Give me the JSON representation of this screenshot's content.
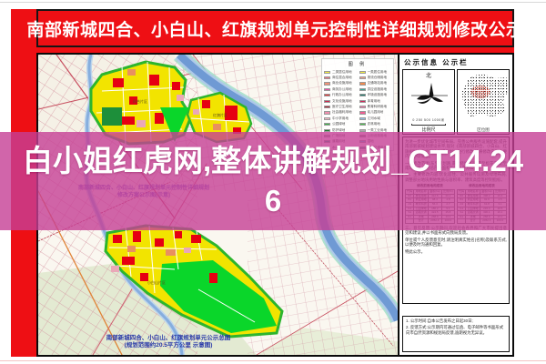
{
  "banner": {
    "title": "南部新城四合、小白山、红旗规划单元控制性详细规划修改公示"
  },
  "overlay": {
    "line1": "白小姐红虎网,整体讲解规划_CT14.24",
    "line2": "6",
    "bg_color": "#c63e95"
  },
  "map": {
    "caption_mid_line1": "南部新城四合、小白山、红旗规划单元控制性详细规划",
    "caption_mid_line2": "修改方案公示图(示意)",
    "caption_bottom_line1": "南部新城四合、小白山、红旗规划单元公示总图",
    "caption_bottom_line2": "(规划范围约20.5平方公里 示意图)",
    "area_label_upper": "四合片区",
    "area_label_right": "红旗片区",
    "area_label_lower": "小白山片区",
    "legend": {
      "title": "图 例",
      "left": [
        {
          "c": "#f5ef3d",
          "t": "二类居住用地"
        },
        {
          "c": "#ef7080",
          "t": "商住混合用地"
        },
        {
          "c": "#ef9278",
          "t": "商业设施用地"
        },
        {
          "c": "#e84fa8",
          "t": "商务办公用地"
        },
        {
          "c": "#e93030",
          "t": "行政办公用地"
        },
        {
          "c": "#cf2a50",
          "t": "文化设施用地"
        },
        {
          "c": "#a82838",
          "t": "医疗卫生用地"
        },
        {
          "c": "#ef8fae",
          "t": "社会福利用地"
        },
        {
          "c": "#f2b8c6",
          "t": "中小学用地"
        },
        {
          "c": "#3cb549",
          "t": "公园绿地"
        },
        {
          "c": "#1a7a33",
          "t": "防护绿地"
        },
        {
          "c": "#8fae9e",
          "t": "广场用地"
        },
        {
          "c": "#2aa392",
          "t": "道路用地"
        },
        {
          "c": "#4f7fd0",
          "t": "水域"
        }
      ],
      "right": [
        {
          "c": "#f5ef3d",
          "t": "一类居住用地"
        },
        {
          "c": "#efa08a",
          "t": "物流仓储用地"
        },
        {
          "c": "#ef8a4f",
          "t": "交通场站用地"
        },
        {
          "c": "#3aa896",
          "t": "供应设施用地"
        },
        {
          "c": "#1d7a6a",
          "t": "环境设施用地"
        },
        {
          "c": "#cf2a5a",
          "t": "体育用地"
        },
        {
          "c": "#ef7fae",
          "t": "教育科研用地"
        },
        {
          "c": "#ef5f92",
          "t": "幼儿园用地"
        },
        {
          "c": "#92bfe8",
          "t": "江河水域"
        },
        {
          "c": "#4fbf4f",
          "t": "农林用地"
        },
        {
          "c": "#b0b0b0",
          "t": "一类工业用地"
        },
        {
          "c": "#8a8a8a",
          "t": "公用设施用地"
        },
        {
          "c": "#4fc8d8",
          "t": "湿地"
        },
        {
          "c": "#3a9a9a",
          "t": "轨道交通用地"
        }
      ]
    }
  },
  "panel": {
    "title": "公示信息 公示栏",
    "north_label": "北",
    "scale_nums": "0   250   500         1000米",
    "scale_label": "比例尺",
    "location_label": "区位图",
    "paragraphs_top": [
      "为进一步优化城市空间布局、完善公共服务设施配套,提升南部新城规划建设水平,现对《南部新城四合、小白山、红旗规划单元控制性详细规划》进行修改,并将修改方案主要内容予以公示。",
      "一、修改范围:东至规划路,南至绕城高速,西至松花江,北至南环城路,规划总用地面积约20.5平方公里。",
      "二、主要修改内容:优化居住、公共服务设施及绿地布局,调整部分地块用地性质与容积率、建筑高度等控制指标。"
    ],
    "table_before": {
      "caption": "修改前用地构成表",
      "headers": [
        "代码",
        "用地名称",
        "面积(ha)",
        "比例(%)"
      ],
      "rows": [
        [
          "R2",
          "居住用地",
          "412.6",
          "20.1"
        ],
        [
          "B1",
          "商业用地",
          "98.4",
          "4.8"
        ],
        [
          "A3",
          "教育科研",
          "56.3",
          "2.7"
        ],
        [
          "G1",
          "公园绿地",
          "186.2",
          "9.1"
        ],
        [
          "S1",
          "道路交通",
          "324.5",
          "15.8"
        ],
        [
          "E1",
          "水域",
          "268.9",
          "13.1"
        ],
        [
          "",
          "合计",
          "2052.4",
          "100.0"
        ]
      ]
    },
    "table_after": {
      "caption": "修改后用地构成表",
      "headers": [
        "代码",
        "用地名称",
        "面积(ha)",
        "比例(%)"
      ],
      "rows": [
        [
          "R2",
          "居住用地",
          "398.2",
          "19.4"
        ],
        [
          "B1",
          "商业用地",
          "92.6",
          "4.5"
        ],
        [
          "A3",
          "教育科研",
          "63.8",
          "3.1"
        ],
        [
          "G1",
          "公园绿地",
          "215.4",
          "10.5"
        ],
        [
          "S1",
          "道路交通",
          "330.1",
          "16.1"
        ],
        [
          "E1",
          "水域",
          "268.9",
          "13.1"
        ],
        [
          "",
          "合计",
          "2052.4",
          "100.0"
        ]
      ]
    },
    "paragraphs_bottom": [
      "三、意见反馈:公示期间,欢迎社会各界和广大市民提出意见和建议,并以书面形式向我局反馈。",
      "单位或个人反馈意见时,请注明真实姓名(名称)及联系方式,以便及时沟通和回复。",
      "特此公示。"
    ],
    "notes": [
      "1. 公示时间:自本公告发布之日起30日;",
      "2. 反馈方式:公示期内可通过信函、电子邮件等书面形式向市自然资源和规划局反馈,逾期视为无异议。"
    ]
  }
}
